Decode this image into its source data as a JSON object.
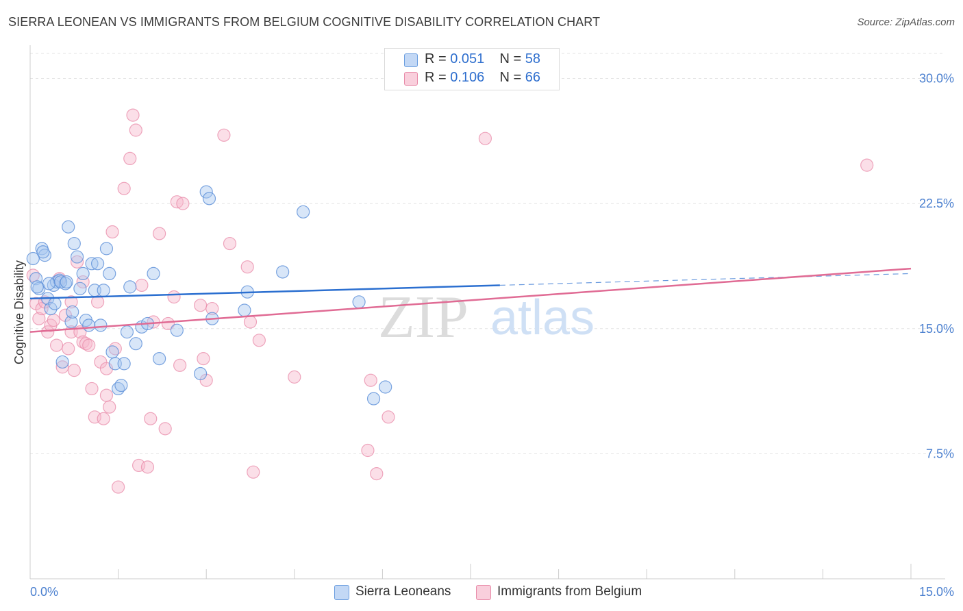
{
  "header": {
    "title": "SIERRA LEONEAN VS IMMIGRANTS FROM BELGIUM COGNITIVE DISABILITY CORRELATION CHART",
    "source": "Source: ZipAtlas.com"
  },
  "legend_box": {
    "rows": [
      {
        "r_label": "R = ",
        "r_value": "0.051",
        "n_label": "N = ",
        "n_value": "58"
      },
      {
        "r_label": "R = ",
        "r_value": "0.106",
        "n_label": "N = ",
        "n_value": "66"
      }
    ]
  },
  "bottom_legend": {
    "series_a": "Sierra Leoneans",
    "series_b": "Immigrants from Belgium"
  },
  "colors": {
    "series_a_fill": "#a9c8f0",
    "series_a_stroke": "#5b8fd8",
    "series_a_line": "#2b6fd0",
    "series_b_fill": "#f6b8cc",
    "series_b_stroke": "#e88aa8",
    "series_b_line": "#e06b94",
    "tick_text": "#4a7fcf",
    "grid": "#e3e3e3"
  },
  "watermark": "ZIPatlas",
  "chart_data": {
    "type": "scatter",
    "xlabel": "",
    "ylabel": "Cognitive Disability",
    "xlim": [
      0,
      15
    ],
    "ylim": [
      0,
      31.5
    ],
    "x_ticks": [
      0,
      15
    ],
    "x_tick_labels": [
      "0.0%",
      "15.0%"
    ],
    "y_ticks": [
      7.5,
      15.0,
      22.5,
      30.0
    ],
    "y_tick_labels": [
      "7.5%",
      "15.0%",
      "22.5%",
      "30.0%"
    ],
    "grid": true,
    "legend_position": "top-center",
    "series": [
      {
        "name": "Sierra Leoneans",
        "r": 0.051,
        "n": 58,
        "trend": {
          "x0": 0,
          "y0": 16.8,
          "x1": 15,
          "y1": 18.3,
          "solid_until_x": 8.0
        },
        "points": [
          [
            0.05,
            19.2
          ],
          [
            0.1,
            18.0
          ],
          [
            0.15,
            17.4
          ],
          [
            0.2,
            19.8
          ],
          [
            0.25,
            19.4
          ],
          [
            0.3,
            16.8
          ],
          [
            0.35,
            16.2
          ],
          [
            0.4,
            17.6
          ],
          [
            0.45,
            17.8
          ],
          [
            0.5,
            17.9
          ],
          [
            0.55,
            13.0
          ],
          [
            0.6,
            17.7
          ],
          [
            0.65,
            21.1
          ],
          [
            0.7,
            15.4
          ],
          [
            0.75,
            20.1
          ],
          [
            0.8,
            19.3
          ],
          [
            0.85,
            17.4
          ],
          [
            0.9,
            18.3
          ],
          [
            0.95,
            15.5
          ],
          [
            1.0,
            15.2
          ],
          [
            1.05,
            18.9
          ],
          [
            1.1,
            17.3
          ],
          [
            1.15,
            18.9
          ],
          [
            1.2,
            15.2
          ],
          [
            1.25,
            17.3
          ],
          [
            1.3,
            19.8
          ],
          [
            1.35,
            18.3
          ],
          [
            1.4,
            13.6
          ],
          [
            1.45,
            12.9
          ],
          [
            1.5,
            11.4
          ],
          [
            1.55,
            11.6
          ],
          [
            1.6,
            12.9
          ],
          [
            1.65,
            14.8
          ],
          [
            1.7,
            17.5
          ],
          [
            1.8,
            14.1
          ],
          [
            1.9,
            15.1
          ],
          [
            2.0,
            15.3
          ],
          [
            2.1,
            18.3
          ],
          [
            2.2,
            13.2
          ],
          [
            2.5,
            14.9
          ],
          [
            2.9,
            12.3
          ],
          [
            3.0,
            23.2
          ],
          [
            3.05,
            22.8
          ],
          [
            3.1,
            15.6
          ],
          [
            3.65,
            16.1
          ],
          [
            3.7,
            17.2
          ],
          [
            4.3,
            18.4
          ],
          [
            4.65,
            22.0
          ],
          [
            5.6,
            16.6
          ],
          [
            5.85,
            10.8
          ],
          [
            6.05,
            11.5
          ],
          [
            0.12,
            17.5
          ],
          [
            0.22,
            19.6
          ],
          [
            0.32,
            17.7
          ],
          [
            0.42,
            16.5
          ],
          [
            0.52,
            17.8
          ],
          [
            0.62,
            17.8
          ],
          [
            0.72,
            16.0
          ]
        ]
      },
      {
        "name": "Immigrants from Belgium",
        "r": 0.106,
        "n": 66,
        "trend": {
          "x0": 0,
          "y0": 14.8,
          "x1": 15,
          "y1": 18.6
        },
        "points": [
          [
            0.05,
            18.2
          ],
          [
            0.1,
            16.5
          ],
          [
            0.15,
            15.6
          ],
          [
            0.2,
            16.2
          ],
          [
            0.25,
            16.6
          ],
          [
            0.3,
            14.8
          ],
          [
            0.35,
            15.2
          ],
          [
            0.4,
            15.5
          ],
          [
            0.45,
            14.0
          ],
          [
            0.5,
            18.0
          ],
          [
            0.55,
            12.7
          ],
          [
            0.6,
            15.8
          ],
          [
            0.65,
            13.8
          ],
          [
            0.7,
            14.8
          ],
          [
            0.75,
            12.5
          ],
          [
            0.8,
            19.0
          ],
          [
            0.85,
            14.8
          ],
          [
            0.9,
            14.2
          ],
          [
            0.95,
            14.1
          ],
          [
            1.0,
            14.0
          ],
          [
            1.05,
            11.4
          ],
          [
            1.1,
            9.7
          ],
          [
            1.15,
            16.6
          ],
          [
            1.2,
            13.0
          ],
          [
            1.25,
            9.6
          ],
          [
            1.3,
            11.0
          ],
          [
            1.35,
            10.3
          ],
          [
            1.4,
            20.8
          ],
          [
            1.45,
            13.8
          ],
          [
            1.5,
            5.5
          ],
          [
            1.6,
            23.4
          ],
          [
            1.7,
            25.2
          ],
          [
            1.75,
            27.8
          ],
          [
            1.8,
            26.9
          ],
          [
            1.85,
            6.8
          ],
          [
            1.9,
            17.6
          ],
          [
            2.0,
            6.7
          ],
          [
            2.05,
            9.6
          ],
          [
            2.1,
            15.4
          ],
          [
            2.2,
            20.7
          ],
          [
            2.3,
            9.0
          ],
          [
            2.35,
            15.3
          ],
          [
            2.45,
            16.9
          ],
          [
            2.5,
            22.6
          ],
          [
            2.55,
            12.8
          ],
          [
            2.6,
            22.5
          ],
          [
            2.9,
            16.4
          ],
          [
            2.95,
            13.2
          ],
          [
            3.0,
            11.9
          ],
          [
            3.1,
            16.2
          ],
          [
            3.3,
            26.6
          ],
          [
            3.4,
            20.1
          ],
          [
            3.7,
            18.7
          ],
          [
            3.75,
            15.4
          ],
          [
            3.8,
            6.4
          ],
          [
            3.9,
            14.3
          ],
          [
            4.5,
            12.1
          ],
          [
            5.75,
            7.7
          ],
          [
            5.8,
            11.9
          ],
          [
            5.9,
            6.3
          ],
          [
            6.1,
            9.7
          ],
          [
            7.75,
            26.4
          ],
          [
            14.25,
            24.8
          ],
          [
            0.7,
            16.6
          ],
          [
            0.9,
            17.8
          ],
          [
            1.3,
            12.6
          ]
        ]
      }
    ]
  }
}
